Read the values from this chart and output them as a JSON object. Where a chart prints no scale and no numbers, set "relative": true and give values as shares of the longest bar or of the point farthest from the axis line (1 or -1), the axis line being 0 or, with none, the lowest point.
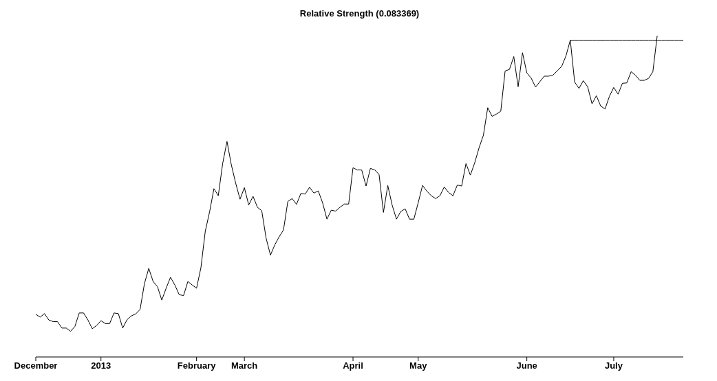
{
  "chart_data": {
    "type": "line",
    "title": "Relative Strength (0.083369)",
    "relative": true,
    "categories": [
      "December",
      null,
      null,
      null,
      null,
      null,
      null,
      null,
      null,
      null,
      null,
      null,
      null,
      null,
      null,
      "2013",
      null,
      null,
      null,
      null,
      null,
      null,
      null,
      null,
      null,
      null,
      null,
      null,
      null,
      null,
      null,
      null,
      null,
      null,
      null,
      null,
      null,
      "February",
      null,
      null,
      null,
      null,
      null,
      null,
      null,
      null,
      null,
      null,
      "March",
      null,
      null,
      null,
      null,
      null,
      null,
      null,
      null,
      null,
      null,
      null,
      null,
      null,
      null,
      null,
      null,
      null,
      null,
      null,
      null,
      null,
      null,
      null,
      null,
      "April",
      null,
      null,
      null,
      null,
      null,
      null,
      null,
      null,
      null,
      null,
      null,
      null,
      null,
      null,
      "May",
      null,
      null,
      null,
      null,
      null,
      null,
      null,
      null,
      null,
      null,
      null,
      null,
      null,
      null,
      null,
      null,
      null,
      null,
      null,
      null,
      null,
      null,
      null,
      null,
      "June",
      null,
      null,
      null,
      null,
      null,
      null,
      null,
      null,
      null,
      null,
      null,
      null,
      null,
      null,
      null,
      null,
      null,
      null,
      null,
      "July",
      null,
      null,
      null,
      null,
      null,
      null,
      null,
      null,
      null,
      null,
      null,
      null,
      null,
      null,
      null,
      null
    ],
    "series": [
      {
        "color": "#000000",
        "values": [
          0.133,
          0.124,
          0.135,
          0.115,
          0.11,
          0.11,
          0.09,
          0.09,
          0.08,
          0.095,
          0.137,
          0.137,
          0.115,
          0.088,
          0.098,
          0.113,
          0.104,
          0.104,
          0.137,
          0.135,
          0.09,
          0.116,
          0.128,
          0.134,
          0.148,
          0.228,
          0.276,
          0.235,
          0.219,
          0.177,
          0.214,
          0.248,
          0.224,
          0.194,
          0.191,
          0.235,
          0.224,
          0.214,
          0.278,
          0.391,
          0.452,
          0.524,
          0.502,
          0.602,
          0.671,
          0.598,
          0.541,
          0.491,
          0.527,
          0.473,
          0.5,
          0.466,
          0.455,
          0.37,
          0.317,
          0.349,
          0.374,
          0.395,
          0.484,
          0.493,
          0.475,
          0.509,
          0.507,
          0.528,
          0.51,
          0.517,
          0.48,
          0.429,
          0.457,
          0.454,
          0.466,
          0.476,
          0.476,
          0.589,
          0.582,
          0.582,
          0.532,
          0.587,
          0.582,
          0.568,
          0.45,
          0.534,
          0.473,
          0.429,
          0.453,
          0.461,
          0.429,
          0.429,
          0.48,
          0.534,
          0.516,
          0.502,
          0.493,
          0.502,
          0.529,
          0.512,
          0.502,
          0.535,
          0.532,
          0.602,
          0.566,
          0.604,
          0.651,
          0.69,
          0.776,
          0.749,
          0.756,
          0.765,
          0.89,
          0.895,
          0.935,
          0.841,
          0.947,
          0.884,
          0.868,
          0.84,
          0.857,
          0.874,
          0.874,
          0.877,
          0.891,
          0.904,
          0.937,
          0.986,
          0.856,
          0.836,
          0.86,
          0.841,
          0.788,
          0.813,
          0.781,
          0.772,
          0.811,
          0.839,
          0.818,
          0.852,
          0.853,
          0.888,
          0.877,
          0.861,
          0.861,
          0.867,
          0.888,
          1.0,
          null,
          null,
          null,
          null,
          null,
          null
        ]
      },
      {
        "color": "#000000",
        "values": [
          null,
          null,
          null,
          null,
          null,
          null,
          null,
          null,
          null,
          null,
          null,
          null,
          null,
          null,
          null,
          null,
          null,
          null,
          null,
          null,
          null,
          null,
          null,
          null,
          null,
          null,
          null,
          null,
          null,
          null,
          null,
          null,
          null,
          null,
          null,
          null,
          null,
          null,
          null,
          null,
          null,
          null,
          null,
          null,
          null,
          null,
          null,
          null,
          null,
          null,
          null,
          null,
          null,
          null,
          null,
          null,
          null,
          null,
          null,
          null,
          null,
          null,
          null,
          null,
          null,
          null,
          null,
          null,
          null,
          null,
          null,
          null,
          null,
          null,
          null,
          null,
          null,
          null,
          null,
          null,
          null,
          null,
          null,
          null,
          null,
          null,
          null,
          null,
          null,
          null,
          null,
          null,
          null,
          null,
          null,
          null,
          null,
          null,
          null,
          null,
          null,
          null,
          null,
          null,
          null,
          null,
          null,
          null,
          null,
          null,
          null,
          null,
          null,
          null,
          null,
          null,
          null,
          null,
          null,
          null,
          null,
          null,
          null,
          0.986,
          0.986,
          0.986,
          0.986,
          0.986,
          0.986,
          0.986,
          0.986,
          0.986,
          0.986,
          0.986,
          0.986,
          0.986,
          0.986,
          0.986,
          0.986,
          0.986,
          0.986,
          0.986,
          0.986,
          0.986,
          0.986,
          0.986,
          0.986,
          0.986,
          0.986,
          0.986
        ]
      }
    ]
  }
}
